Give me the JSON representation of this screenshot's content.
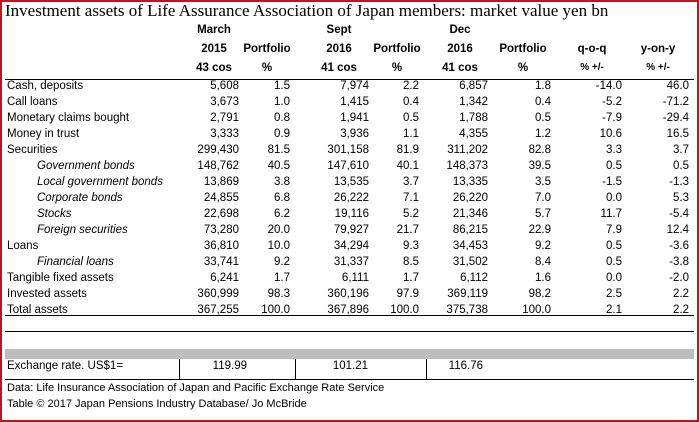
{
  "title": "Investment assets of Life Assurance Association of Japan members: market value yen bn",
  "headers": {
    "march_line1": "March",
    "march_line2": "2015",
    "march_line3": "43 cos",
    "sept_line1": "Sept",
    "sept_line2": "2016",
    "sept_line3": "41 cos",
    "dec_line1": "Dec",
    "dec_line2": "2016",
    "dec_line3": "41 cos",
    "portfolio": "Portfolio",
    "pct": "%",
    "qoq": "q-o-q",
    "qoq_unit": "% +/-",
    "yoy": "y-on-y",
    "yoy_unit": "% +/-"
  },
  "rows": [
    {
      "label": "Cash, deposits",
      "sub": false,
      "m15": "5,608",
      "p1": "1.5",
      "s16": "7,974",
      "p2": "2.2",
      "d16": "6,857",
      "p3": "1.8",
      "qoq": "-14.0",
      "yoy": "46.0"
    },
    {
      "label": "Call loans",
      "sub": false,
      "m15": "3,673",
      "p1": "1.0",
      "s16": "1,415",
      "p2": "0.4",
      "d16": "1,342",
      "p3": "0.4",
      "qoq": "-5.2",
      "yoy": "-71.2"
    },
    {
      "label": "Monetary claims bought",
      "sub": false,
      "m15": "2,791",
      "p1": "0.8",
      "s16": "1,941",
      "p2": "0.5",
      "d16": "1,788",
      "p3": "0.5",
      "qoq": "-7.9",
      "yoy": "-29.4"
    },
    {
      "label": "Money in trust",
      "sub": false,
      "m15": "3,333",
      "p1": "0.9",
      "s16": "3,936",
      "p2": "1.1",
      "d16": "4,355",
      "p3": "1.2",
      "qoq": "10.6",
      "yoy": "16.5"
    },
    {
      "label": "Securities",
      "sub": false,
      "m15": "299,430",
      "p1": "81.5",
      "s16": "301,158",
      "p2": "81.9",
      "d16": "311,202",
      "p3": "82.8",
      "qoq": "3.3",
      "yoy": "3.7"
    },
    {
      "label": "Government bonds",
      "sub": true,
      "m15": "148,762",
      "p1": "40.5",
      "s16": "147,610",
      "p2": "40.1",
      "d16": "148,373",
      "p3": "39.5",
      "qoq": "0.5",
      "yoy": "0.5"
    },
    {
      "label": "Local government bonds",
      "sub": true,
      "m15": "13,869",
      "p1": "3.8",
      "s16": "13,535",
      "p2": "3.7",
      "d16": "13,335",
      "p3": "3.5",
      "qoq": "-1.5",
      "yoy": "-1.3"
    },
    {
      "label": "Corporate bonds",
      "sub": true,
      "m15": "24,855",
      "p1": "6.8",
      "s16": "26,222",
      "p2": "7.1",
      "d16": "26,220",
      "p3": "7.0",
      "qoq": "0.0",
      "yoy": "5.3"
    },
    {
      "label": "Stocks",
      "sub": true,
      "m15": "22,698",
      "p1": "6.2",
      "s16": "19,116",
      "p2": "5.2",
      "d16": "21,346",
      "p3": "5.7",
      "qoq": "11.7",
      "yoy": "-5.4"
    },
    {
      "label": "Foreign securities",
      "sub": true,
      "m15": "73,280",
      "p1": "20.0",
      "s16": "79,927",
      "p2": "21.7",
      "d16": "86,215",
      "p3": "22.9",
      "qoq": "7.9",
      "yoy": "12.4"
    },
    {
      "label": "Loans",
      "sub": false,
      "m15": "36,810",
      "p1": "10.0",
      "s16": "34,294",
      "p2": "9.3",
      "d16": "34,453",
      "p3": "9.2",
      "qoq": "0.5",
      "yoy": "-3.6"
    },
    {
      "label": "Financial loans",
      "sub": true,
      "m15": "33,741",
      "p1": "9.2",
      "s16": "31,337",
      "p2": "8.5",
      "d16": "31,502",
      "p3": "8.4",
      "qoq": "0.5",
      "yoy": "-3.8"
    },
    {
      "label": "Tangible fixed assets",
      "sub": false,
      "m15": "6,241",
      "p1": "1.7",
      "s16": "6,111",
      "p2": "1.7",
      "d16": "6,112",
      "p3": "1.6",
      "qoq": "0.0",
      "yoy": "-2.0"
    },
    {
      "label": "Invested assets",
      "sub": false,
      "m15": "360,999",
      "p1": "98.3",
      "s16": "360,196",
      "p2": "97.9",
      "d16": "369,119",
      "p3": "98.2",
      "qoq": "2.5",
      "yoy": "2.2"
    },
    {
      "label": "Total assets",
      "sub": false,
      "m15": "367,255",
      "p1": "100.0",
      "s16": "367,896",
      "p2": "100.0",
      "d16": "375,738",
      "p3": "100.0",
      "qoq": "2.1",
      "yoy": "2.2"
    }
  ],
  "exchange": {
    "label": "Exchange rate. US$1=",
    "m15": "119.99",
    "s16": "101.21",
    "d16": "116.76"
  },
  "footer": {
    "source": "Data: Life Insurance Association of Japan and Pacific Exchange Rate Service",
    "copyright": "Table © 2017 Japan Pensions Industry Database/ Jo McBride"
  },
  "colors": {
    "border": "#c0141c",
    "separator_band": "#bdbdbd"
  }
}
